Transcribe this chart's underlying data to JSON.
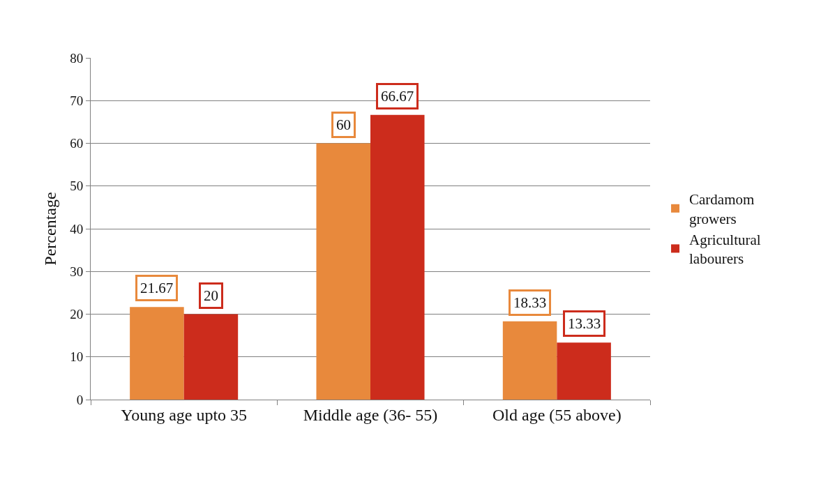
{
  "chart_data": {
    "type": "bar",
    "ylabel": "Percentage",
    "categories": [
      "Young age upto 35",
      "Middle age (36- 55)",
      "Old age (55 above)"
    ],
    "series": [
      {
        "name": "Cardamom growers",
        "color": "#e8893c",
        "values": [
          21.67,
          60,
          18.33
        ]
      },
      {
        "name": "Agricultural labourers",
        "color": "#cc2c1c",
        "values": [
          20,
          66.67,
          13.33
        ]
      }
    ],
    "ylim": [
      0,
      80
    ],
    "yticks": [
      0,
      10,
      20,
      30,
      40,
      50,
      60,
      70,
      80
    ],
    "grid": "y",
    "legend": "right",
    "data_labels": true
  }
}
